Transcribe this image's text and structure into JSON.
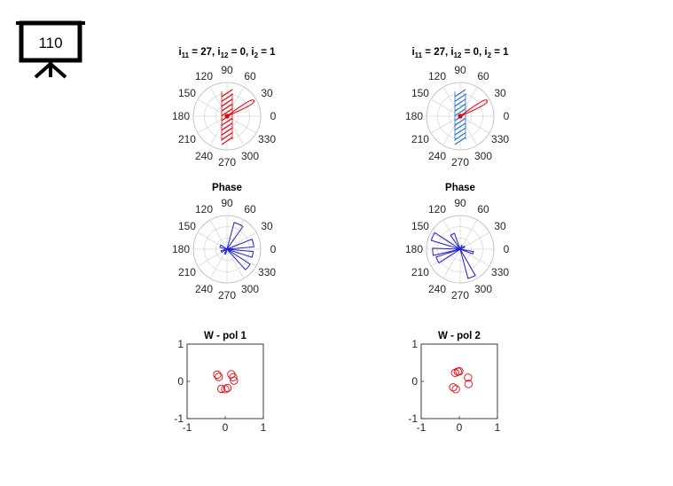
{
  "slide_badge": {
    "number": "110",
    "icon": "presentation-board-icon"
  },
  "colors": {
    "gain": "#e8000b",
    "hatch_left": "#e8000b",
    "hatch_right": "#2e73c4",
    "phase": "#1f1fd6",
    "points": "#e8000b",
    "grid": "#d9d9d9",
    "frame": "#262626"
  },
  "chart_data": [
    {
      "type": "polar",
      "id": "gain-left",
      "title": {
        "main": "i",
        "sub1": "11",
        "mid1": " = 27, i",
        "sub2": "12",
        "mid2": " = 0, i",
        "sub3": "2",
        "end": " = 1"
      },
      "angle_ticks": [
        "0",
        "30",
        "60",
        "90",
        "120",
        "150",
        "180",
        "210",
        "240",
        "270",
        "300",
        "330"
      ],
      "beam_direction_deg": 30,
      "beam_length": 0.92,
      "hatch_angle_deg": 95,
      "hatch_color": "hatch_left"
    },
    {
      "type": "polar",
      "id": "gain-right",
      "title": {
        "main": "i",
        "sub1": "11",
        "mid1": " = 27, i",
        "sub2": "12",
        "mid2": " = 0, i",
        "sub3": "2",
        "end": " = 1"
      },
      "angle_ticks": [
        "0",
        "30",
        "60",
        "90",
        "120",
        "150",
        "180",
        "210",
        "240",
        "270",
        "300",
        "330"
      ],
      "beam_direction_deg": 30,
      "beam_length": 0.92,
      "hatch_angle_deg": 95,
      "hatch_color": "hatch_right"
    },
    {
      "type": "polar-histogram",
      "id": "phase-left",
      "title": "Phase",
      "angle_ticks": [
        "0",
        "30",
        "60",
        "90",
        "120",
        "150",
        "180",
        "210",
        "240",
        "270",
        "300",
        "330"
      ],
      "bins": [
        {
          "start_deg": 55,
          "end_deg": 75,
          "radius": 0.82
        },
        {
          "start_deg": 5,
          "end_deg": 22,
          "radius": 0.8
        },
        {
          "start_deg": -18,
          "end_deg": -5,
          "radius": 0.78
        },
        {
          "start_deg": -48,
          "end_deg": -33,
          "radius": 0.82
        },
        {
          "start_deg": 145,
          "end_deg": 165,
          "radius": 0.22
        },
        {
          "start_deg": 195,
          "end_deg": 210,
          "radius": 0.18
        },
        {
          "start_deg": 240,
          "end_deg": 255,
          "radius": 0.15
        }
      ]
    },
    {
      "type": "polar-histogram",
      "id": "phase-right",
      "title": "Phase",
      "angle_ticks": [
        "0",
        "30",
        "60",
        "90",
        "120",
        "150",
        "180",
        "210",
        "240",
        "270",
        "300",
        "330"
      ],
      "bins": [
        {
          "start_deg": 110,
          "end_deg": 125,
          "radius": 0.5
        },
        {
          "start_deg": 147,
          "end_deg": 163,
          "radius": 0.9
        },
        {
          "start_deg": 178,
          "end_deg": 193,
          "radius": 0.82
        },
        {
          "start_deg": 198,
          "end_deg": 213,
          "radius": 0.75
        },
        {
          "start_deg": 285,
          "end_deg": 300,
          "radius": 0.9
        },
        {
          "start_deg": 340,
          "end_deg": 350,
          "radius": 0.4
        },
        {
          "start_deg": 25,
          "end_deg": 35,
          "radius": 0.15
        },
        {
          "start_deg": 60,
          "end_deg": 70,
          "radius": 0.12
        }
      ]
    },
    {
      "type": "scatter",
      "id": "w-pol-1",
      "title": "W - pol 1",
      "xlim": [
        -1,
        1
      ],
      "ylim": [
        -1,
        1
      ],
      "xticks": [
        "-1",
        "0",
        "1"
      ],
      "yticks": [
        "-1",
        "0",
        "1"
      ],
      "points": [
        {
          "x": -0.21,
          "y": 0.18
        },
        {
          "x": -0.17,
          "y": 0.12
        },
        {
          "x": 0.16,
          "y": 0.19
        },
        {
          "x": 0.21,
          "y": 0.11
        },
        {
          "x": 0.23,
          "y": 0.02
        },
        {
          "x": -0.1,
          "y": -0.2
        },
        {
          "x": 0.0,
          "y": -0.21
        },
        {
          "x": 0.06,
          "y": -0.18
        }
      ]
    },
    {
      "type": "scatter",
      "id": "w-pol-2",
      "title": "W - pol 2",
      "xlim": [
        -1,
        1
      ],
      "ylim": [
        -1,
        1
      ],
      "xticks": [
        "-1",
        "0",
        "1"
      ],
      "yticks": [
        "-1",
        "0",
        "1"
      ],
      "points": [
        {
          "x": -0.11,
          "y": 0.23
        },
        {
          "x": -0.04,
          "y": 0.26
        },
        {
          "x": 0.0,
          "y": 0.27
        },
        {
          "x": 0.23,
          "y": 0.1
        },
        {
          "x": 0.24,
          "y": -0.07
        },
        {
          "x": -0.16,
          "y": -0.16
        },
        {
          "x": -0.09,
          "y": -0.21
        }
      ]
    }
  ]
}
